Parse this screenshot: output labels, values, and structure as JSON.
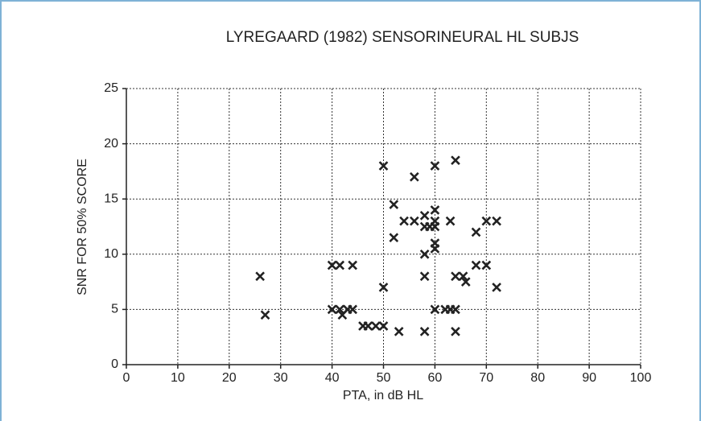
{
  "chart_data": {
    "type": "scatter",
    "title": "LYREGAARD (1982) SENSORINEURAL HL SUBJS",
    "x_label": "PTA, in dB HL",
    "y_label": "SNR FOR 50% SCORE",
    "x": [
      26,
      27,
      40,
      41.5,
      44,
      40,
      41.5,
      42,
      43,
      44,
      46,
      47,
      48.5,
      50,
      50,
      50,
      52,
      52,
      53,
      54,
      56,
      56,
      58,
      58,
      58,
      58,
      58,
      59,
      60,
      60,
      60,
      60,
      60,
      60,
      60,
      62,
      63,
      64,
      63,
      64,
      64,
      64,
      65.5,
      66,
      68,
      68,
      70,
      70,
      72,
      72
    ],
    "values": [
      8,
      4.5,
      9,
      9,
      9,
      5,
      5,
      4.5,
      5,
      5,
      3.5,
      3.5,
      3.5,
      3.5,
      18,
      7,
      14.5,
      11.5,
      3,
      13,
      17,
      13,
      13.5,
      12.5,
      10,
      8,
      3,
      12.5,
      18,
      14,
      13,
      12.5,
      11,
      10.5,
      5,
      5,
      5,
      5,
      13,
      18.5,
      8,
      3,
      8,
      7.5,
      12,
      9,
      9,
      13,
      13,
      7
    ],
    "color": "#222222",
    "xlim": [
      0,
      100
    ],
    "xticks": [
      0,
      10,
      20,
      30,
      40,
      50,
      60,
      70,
      80,
      90,
      100
    ],
    "ylim": [
      0,
      25
    ],
    "yticks": [
      0,
      5,
      10,
      15,
      20,
      25
    ],
    "grid": true
  }
}
